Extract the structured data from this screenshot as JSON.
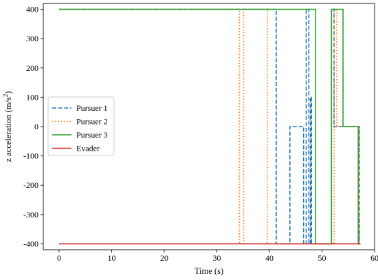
{
  "chart_data": {
    "type": "line",
    "title": "",
    "xlabel": "Time (s)",
    "ylabel_prefix": "z acceleration (m/s",
    "ylabel_sup": "2",
    "ylabel_suffix": ")",
    "xlim": [
      -3,
      60
    ],
    "ylim": [
      -420,
      420
    ],
    "xticks": [
      0,
      10,
      20,
      30,
      40,
      50,
      60
    ],
    "yticks": [
      -400,
      -300,
      -200,
      -100,
      0,
      100,
      200,
      300,
      400
    ],
    "grid": false,
    "legend_position": "center-left",
    "series": [
      {
        "name": "Pursuer 1",
        "color": "#1f77b4",
        "style": "dashed",
        "x": [
          0,
          41.3,
          41.3,
          43.9,
          43.9,
          46.5,
          46.5,
          47.0,
          47.0,
          47.5,
          47.5,
          47.8,
          47.8,
          48.0,
          48.0,
          51.8,
          51.8,
          52.3,
          52.3,
          54.0,
          54.0,
          57.1,
          57.1,
          57.3
        ],
        "y": [
          400,
          400,
          -400,
          -400,
          0,
          0,
          -400,
          -400,
          400,
          400,
          -400,
          -400,
          100,
          100,
          -400,
          -400,
          400,
          400,
          0,
          0,
          0,
          0,
          -400,
          -400
        ]
      },
      {
        "name": "Pursuer 2",
        "color": "#ff7f0e",
        "style": "dotted",
        "x": [
          0,
          34.3,
          34.3,
          35.1,
          35.1,
          39.6,
          39.6,
          52.3,
          52.3,
          52.8,
          52.8,
          54.0,
          54.0,
          57.1,
          57.1,
          57.3
        ],
        "y": [
          400,
          400,
          -400,
          -400,
          400,
          400,
          -400,
          -400,
          400,
          400,
          0,
          0,
          0,
          0,
          -400,
          -400
        ]
      },
      {
        "name": "Pursuer 3",
        "color": "#2ca02c",
        "style": "solid",
        "x": [
          0,
          48.8,
          48.8,
          51.8,
          51.8,
          52.3,
          52.3,
          53.0,
          53.0,
          53.8,
          53.8,
          54.0,
          54.0,
          56.9,
          56.9,
          57.3
        ],
        "y": [
          400,
          400,
          -400,
          -400,
          400,
          400,
          400,
          400,
          400,
          400,
          400,
          400,
          0,
          0,
          -400,
          -400
        ]
      },
      {
        "name": "Evader",
        "color": "#d62728",
        "style": "solid",
        "x": [
          0,
          57.3
        ],
        "y": [
          -400,
          -400
        ]
      }
    ]
  }
}
